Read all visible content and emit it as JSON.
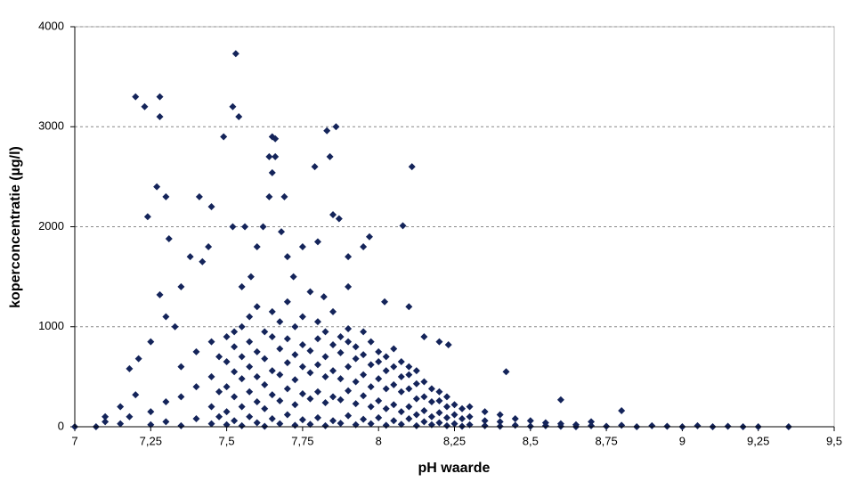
{
  "chart_data": {
    "type": "scatter",
    "x_label": "pH waarde",
    "y_label": "koperconcentratie (µg/l)",
    "xlim": [
      7,
      9.5
    ],
    "xticks": [
      7,
      {
        "value": 7.25,
        "label": "7,25"
      },
      {
        "value": 7.5,
        "label": "7,5"
      },
      {
        "value": 7.75,
        "label": "7,75"
      },
      8,
      {
        "value": 8.25,
        "label": "8,25"
      },
      {
        "value": 8.5,
        "label": "8,5"
      },
      {
        "value": 8.75,
        "label": "8,75"
      },
      9,
      {
        "value": 9.25,
        "label": "9,25"
      },
      {
        "value": 9.5,
        "label": "9,5"
      }
    ],
    "ylim": [
      0,
      4000
    ],
    "yticks": [
      0,
      1000,
      2000,
      3000,
      4000
    ],
    "grid": true,
    "series": [
      {
        "color": "#14245a",
        "x": [
          7.5,
          7.5,
          7.5,
          7.5,
          7.5,
          7.525,
          7.525,
          7.525,
          7.525,
          7.525,
          7.55,
          7.55,
          7.55,
          7.55,
          7.55,
          7.575,
          7.575,
          7.575,
          7.575,
          7.575,
          7.6,
          7.6,
          7.6,
          7.6,
          7.6,
          7.625,
          7.625,
          7.625,
          7.625,
          7.625,
          7.65,
          7.65,
          7.65,
          7.65,
          7.65,
          7.675,
          7.675,
          7.675,
          7.675,
          7.675,
          7.7,
          7.7,
          7.7,
          7.7,
          7.7,
          7.725,
          7.725,
          7.725,
          7.725,
          7.725,
          7.75,
          7.75,
          7.75,
          7.75,
          7.75,
          7.775,
          7.775,
          7.775,
          7.775,
          7.775,
          7.8,
          7.8,
          7.8,
          7.8,
          7.8,
          7.825,
          7.825,
          7.825,
          7.825,
          7.825,
          7.85,
          7.85,
          7.85,
          7.85,
          7.85,
          7.875,
          7.875,
          7.875,
          7.875,
          7.875,
          7.9,
          7.9,
          7.9,
          7.9,
          7.9,
          7.925,
          7.925,
          7.925,
          7.925,
          7.925,
          7.95,
          7.95,
          7.95,
          7.95,
          7.95,
          7.975,
          7.975,
          7.975,
          7.975,
          7.975,
          8,
          8,
          8,
          8,
          8,
          8.025,
          8.025,
          8.025,
          8.025,
          8.025,
          8.05,
          8.05,
          8.05,
          8.05,
          8.05,
          8.075,
          8.075,
          8.075,
          8.075,
          8.075,
          8.1,
          8.1,
          8.1,
          8.1,
          8.1,
          8.125,
          8.125,
          8.125,
          8.125,
          8.125,
          8.15,
          8.15,
          8.15,
          8.15,
          8.175,
          8.175,
          8.175,
          8.175,
          8.2,
          8.2,
          8.2,
          8.2,
          8.225,
          8.225,
          8.225,
          8.225,
          8.25,
          8.25,
          8.25,
          8.275,
          8.275,
          8.275,
          8.3,
          8.3,
          8.3,
          8.35,
          8.35,
          8.35,
          8.4,
          8.4,
          8.4,
          8.45,
          8.45,
          8.5,
          8.5,
          8.55,
          8.55,
          8.6,
          8.6,
          8.65,
          8.65,
          7.25,
          7.25,
          7.3,
          7.3,
          7.35,
          7.35,
          7.35,
          7.4,
          7.4,
          7.4,
          7.45,
          7.45,
          7.45,
          7.45,
          7.475,
          7.475,
          7.475,
          7.2,
          7.23,
          7.28,
          7.28,
          7.53,
          7.52,
          7.54,
          7.49,
          7.65,
          7.66,
          7.83,
          7.86,
          7.84,
          7.79,
          8.11,
          7.64,
          7.66,
          7.65,
          7.27,
          7.3,
          7.41,
          7.64,
          7.69,
          7.24,
          7.45,
          7.85,
          7.87,
          8.08,
          7.52,
          7.56,
          7.62,
          7.31,
          7.68,
          7.97,
          7.38,
          7.42,
          7.44,
          7.6,
          7.75,
          7.8,
          7.7,
          7.9,
          7.95,
          7.28,
          7.35,
          7.55,
          7.58,
          7.72,
          7.82,
          7.9,
          8.02,
          8.1,
          7.18,
          7.21,
          7.25,
          7.3,
          7.33,
          7.2,
          8.2,
          8.23,
          8.15,
          8.42,
          8.6,
          8.8,
          8.7,
          7,
          7.07,
          7.1,
          7.1,
          7.15,
          7.15,
          7.18,
          8.7,
          8.75,
          8.8,
          8.85,
          8.9,
          8.95,
          9,
          9.05,
          9.1,
          9.15,
          9.2,
          9.25,
          9.35
        ],
        "values": [
          20,
          150,
          400,
          650,
          900,
          60,
          300,
          550,
          800,
          950,
          10,
          200,
          480,
          700,
          1000,
          100,
          350,
          600,
          850,
          1100,
          40,
          250,
          500,
          750,
          1200,
          5,
          180,
          420,
          680,
          950,
          80,
          320,
          560,
          900,
          1150,
          30,
          260,
          520,
          780,
          1050,
          120,
          380,
          640,
          880,
          1250,
          15,
          220,
          470,
          720,
          1000,
          70,
          330,
          600,
          820,
          1100,
          25,
          280,
          540,
          760,
          1350,
          90,
          350,
          620,
          880,
          1050,
          10,
          240,
          500,
          700,
          950,
          60,
          300,
          560,
          820,
          1150,
          35,
          270,
          480,
          740,
          900,
          110,
          360,
          600,
          850,
          980,
          20,
          230,
          450,
          680,
          800,
          75,
          310,
          520,
          720,
          950,
          30,
          200,
          400,
          620,
          850,
          90,
          260,
          480,
          650,
          750,
          15,
          180,
          380,
          560,
          700,
          60,
          220,
          420,
          600,
          780,
          25,
          150,
          350,
          500,
          650,
          80,
          200,
          380,
          520,
          600,
          10,
          120,
          280,
          430,
          560,
          50,
          160,
          300,
          450,
          20,
          100,
          250,
          380,
          40,
          140,
          260,
          350,
          10,
          90,
          200,
          300,
          30,
          120,
          220,
          5,
          80,
          180,
          20,
          100,
          200,
          10,
          60,
          150,
          5,
          50,
          120,
          15,
          80,
          5,
          60,
          10,
          40,
          5,
          30,
          20,
          0,
          20,
          150,
          50,
          250,
          10,
          300,
          600,
          80,
          400,
          750,
          30,
          200,
          500,
          850,
          100,
          350,
          700,
          3300,
          3200,
          3300,
          3100,
          3730,
          3200,
          3100,
          2900,
          2900,
          2880,
          2960,
          3000,
          2700,
          2600,
          2600,
          2700,
          2700,
          2540,
          2400,
          2300,
          2300,
          2300,
          2300,
          2100,
          2200,
          2120,
          2080,
          2010,
          2000,
          2000,
          2000,
          1880,
          1950,
          1900,
          1700,
          1650,
          1800,
          1800,
          1800,
          1850,
          1700,
          1700,
          1800,
          1320,
          1400,
          1400,
          1500,
          1500,
          1300,
          1400,
          1250,
          1200,
          580,
          680,
          850,
          1100,
          1000,
          320,
          850,
          820,
          900,
          550,
          270,
          160,
          50,
          0,
          0,
          100,
          50,
          200,
          30,
          100,
          10,
          5,
          15,
          0,
          10,
          5,
          0,
          10,
          0,
          5,
          0,
          0,
          0
        ]
      }
    ]
  }
}
